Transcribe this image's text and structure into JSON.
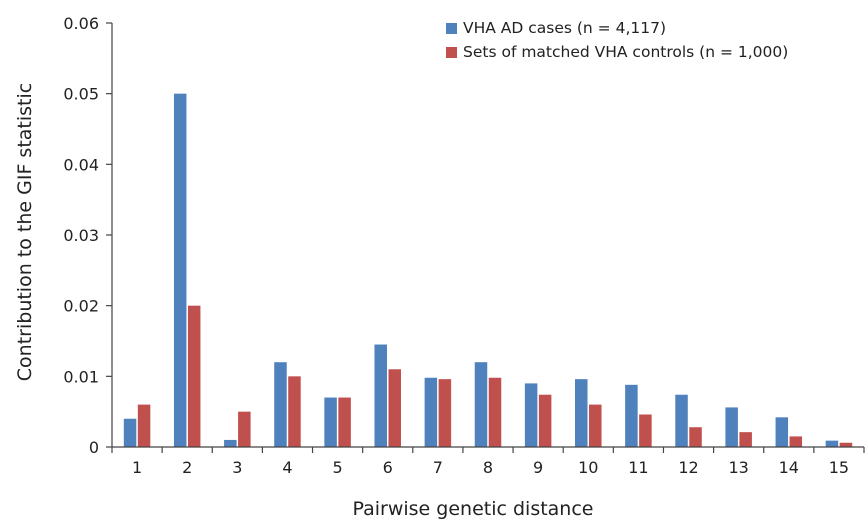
{
  "chart_data": {
    "type": "bar",
    "title": "",
    "xlabel": "Pairwise genetic distance",
    "ylabel": "Contribution to the GIF statistic",
    "categories": [
      "1",
      "2",
      "3",
      "4",
      "5",
      "6",
      "7",
      "8",
      "9",
      "10",
      "11",
      "12",
      "13",
      "14",
      "15"
    ],
    "series": [
      {
        "name": "VHA AD cases (n = 4,117)",
        "color": "#4F81BD",
        "values": [
          0.004,
          0.05,
          0.001,
          0.012,
          0.007,
          0.0145,
          0.0098,
          0.012,
          0.009,
          0.0096,
          0.0088,
          0.0074,
          0.0056,
          0.0042,
          0.0009
        ]
      },
      {
        "name": "Sets of matched VHA controls (n = 1,000)",
        "color": "#C0504D",
        "values": [
          0.006,
          0.02,
          0.005,
          0.01,
          0.007,
          0.011,
          0.0096,
          0.0098,
          0.0074,
          0.006,
          0.0046,
          0.0028,
          0.0021,
          0.0015,
          0.0006
        ]
      }
    ],
    "ylim": [
      0,
      0.06
    ],
    "yticks": [
      "0",
      "0.01",
      "0.02",
      "0.03",
      "0.04",
      "0.05",
      "0.06"
    ],
    "grid": false,
    "legend": "top-right"
  }
}
